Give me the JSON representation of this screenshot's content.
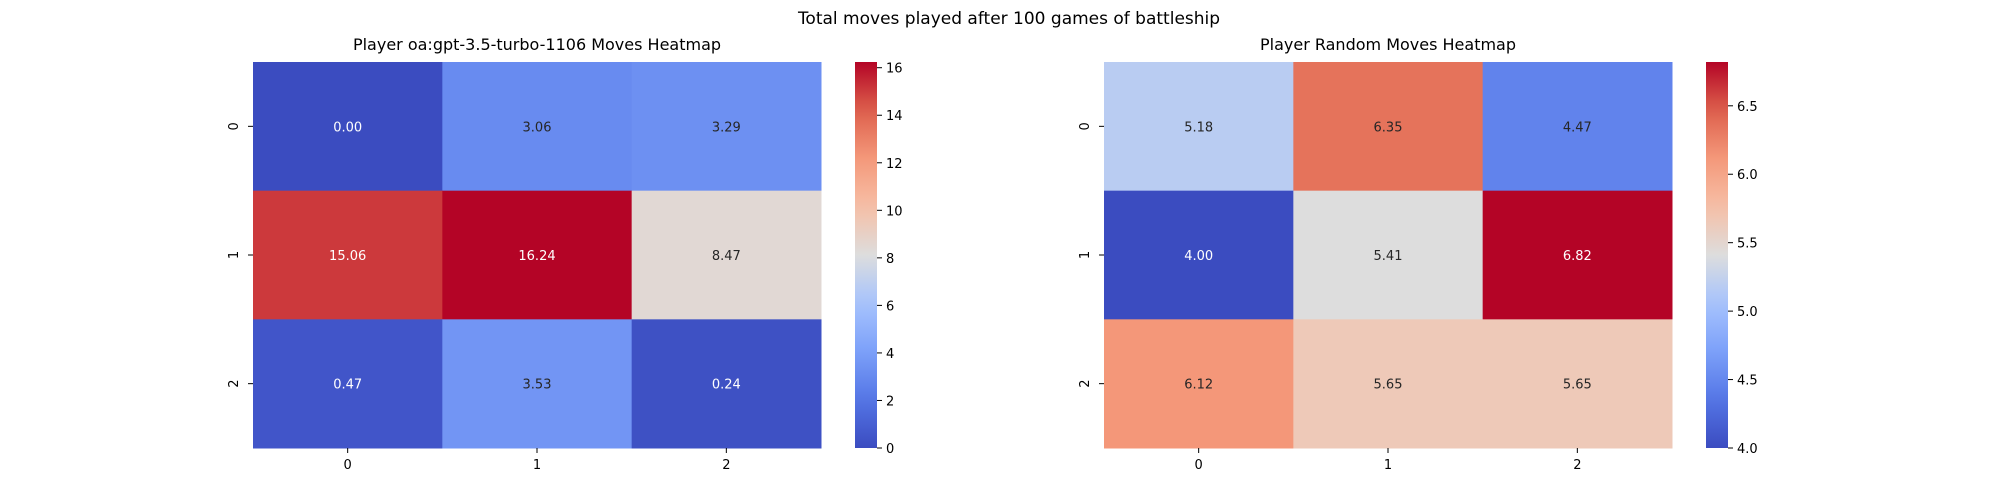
{
  "suptitle": "Total moves played after 100 games of battleship",
  "chart_data": [
    {
      "type": "heatmap",
      "title": "Player oa:gpt-3.5-turbo-1106 Moves Heatmap",
      "xlabel": "",
      "ylabel": "",
      "x_ticks": [
        "0",
        "1",
        "2"
      ],
      "y_ticks": [
        "0",
        "1",
        "2"
      ],
      "values": [
        [
          0.0,
          3.06,
          3.29
        ],
        [
          15.06,
          16.24,
          8.47
        ],
        [
          0.47,
          3.53,
          0.24
        ]
      ],
      "annotations": [
        [
          "0.00",
          "3.06",
          "3.29"
        ],
        [
          "15.06",
          "16.24",
          "8.47"
        ],
        [
          "0.47",
          "3.53",
          "0.24"
        ]
      ],
      "colormap": "coolwarm",
      "vmin": 0.0,
      "vmax": 16.24,
      "colorbar_ticks": [
        0,
        2,
        4,
        6,
        8,
        10,
        12,
        14,
        16
      ],
      "colorbar_tick_labels": [
        "0",
        "2",
        "4",
        "6",
        "8",
        "10",
        "12",
        "14",
        "16"
      ]
    },
    {
      "type": "heatmap",
      "title": "Player Random Moves Heatmap",
      "xlabel": "",
      "ylabel": "",
      "x_ticks": [
        "0",
        "1",
        "2"
      ],
      "y_ticks": [
        "0",
        "1",
        "2"
      ],
      "values": [
        [
          5.18,
          6.35,
          4.47
        ],
        [
          4.0,
          5.41,
          6.82
        ],
        [
          6.12,
          5.65,
          5.65
        ]
      ],
      "annotations": [
        [
          "5.18",
          "6.35",
          "4.47"
        ],
        [
          "4.00",
          "5.41",
          "6.82"
        ],
        [
          "6.12",
          "5.65",
          "5.65"
        ]
      ],
      "colormap": "coolwarm",
      "vmin": 4.0,
      "vmax": 6.82,
      "colorbar_ticks": [
        4.0,
        4.5,
        5.0,
        5.5,
        6.0,
        6.5
      ],
      "colorbar_tick_labels": [
        "4.0",
        "4.5",
        "5.0",
        "5.5",
        "6.0",
        "6.5"
      ]
    }
  ]
}
